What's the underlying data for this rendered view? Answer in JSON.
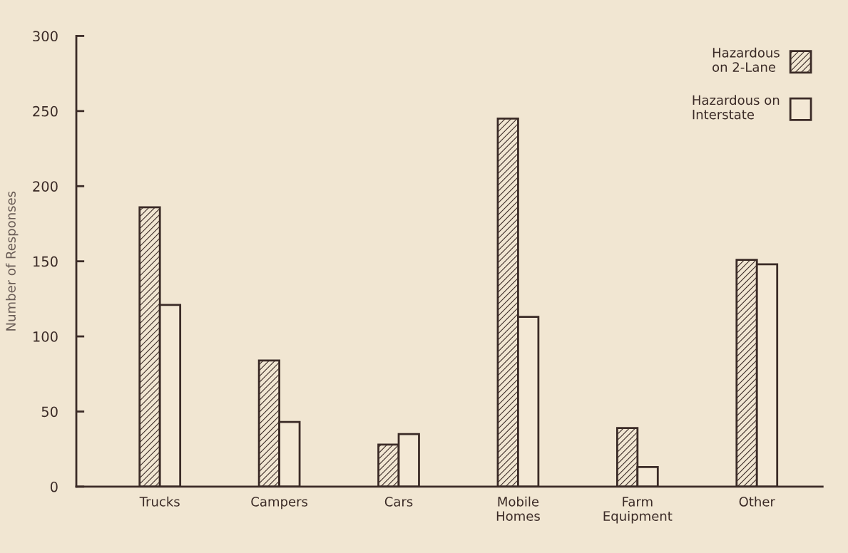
{
  "chart_data": {
    "type": "bar",
    "ylabel": "Number of Responses",
    "categories": [
      "Trucks",
      "Campers",
      "Cars",
      "Mobile\nHomes",
      "Farm\nEquipment",
      "Other"
    ],
    "series": [
      {
        "name": "Hazardous\non 2-Lane",
        "color": "#3b2b27",
        "values": [
          186,
          84,
          28,
          245,
          39,
          151
        ]
      },
      {
        "name": "Hazardous on\nInterstate",
        "color": "#f3e8d5",
        "values": [
          121,
          43,
          35,
          113,
          13,
          148
        ]
      }
    ],
    "ylim": [
      0,
      300
    ],
    "yticks": [
      0,
      50,
      100,
      150,
      200,
      250,
      300
    ],
    "grid": false,
    "legend": "top right"
  }
}
